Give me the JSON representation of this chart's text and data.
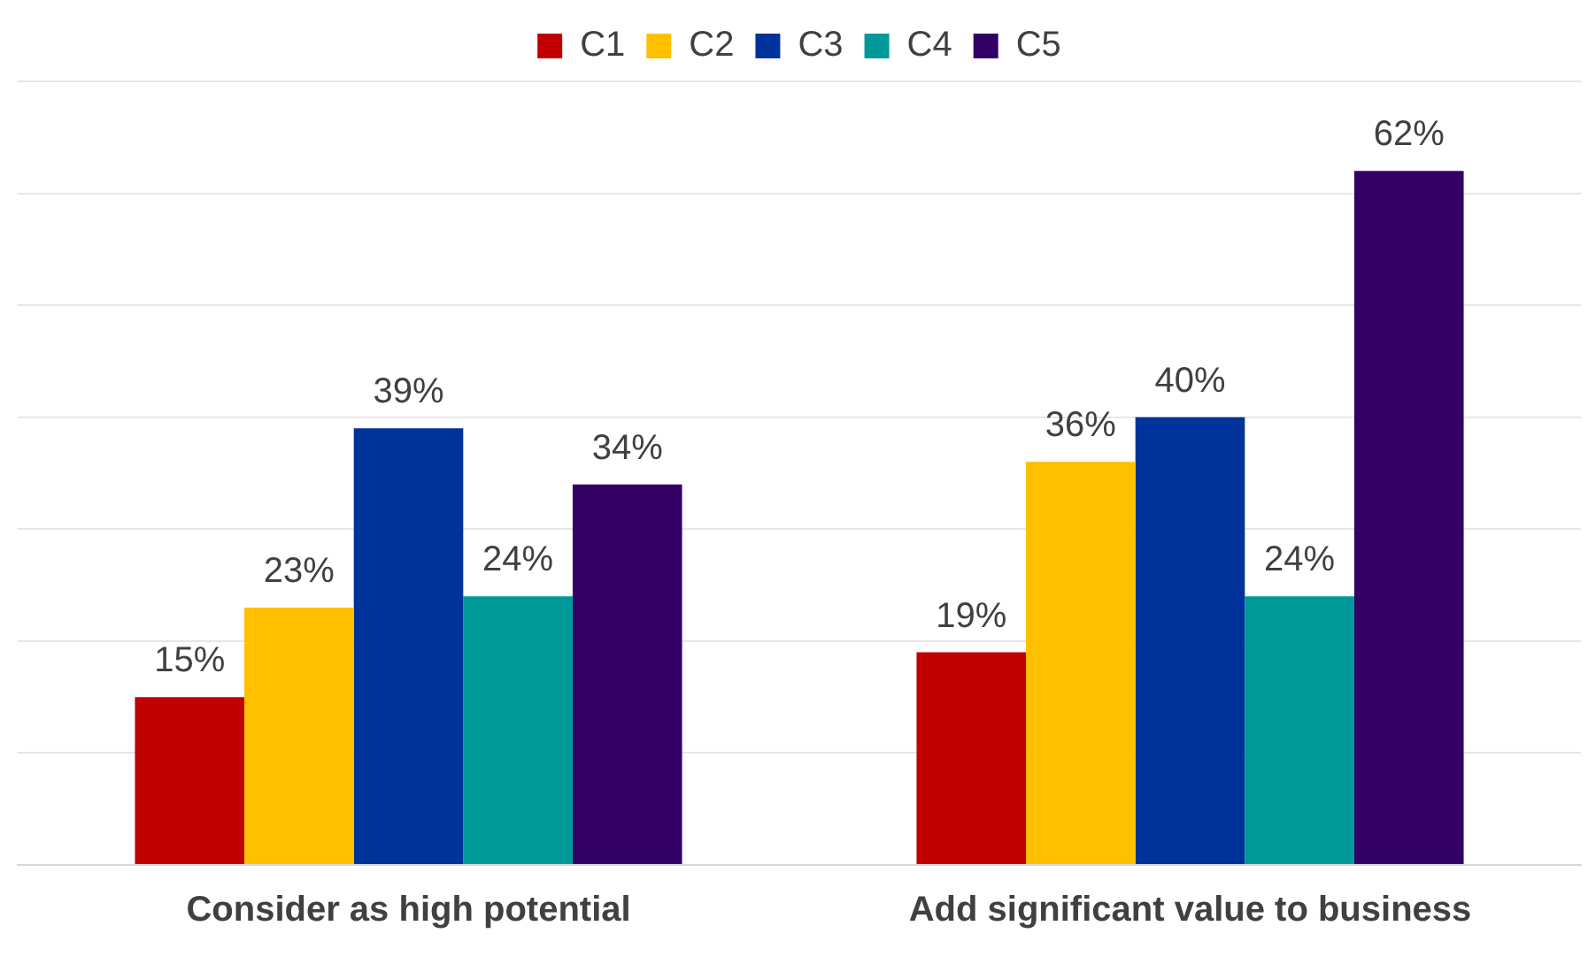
{
  "chart_data": {
    "type": "bar",
    "categories": [
      "Consider as high potential",
      "Add significant value to business"
    ],
    "series": [
      {
        "name": "C1",
        "color": "#c00000",
        "values": [
          15,
          19
        ],
        "value_labels": [
          "15%",
          "19%"
        ]
      },
      {
        "name": "C2",
        "color": "#ffc000",
        "values": [
          23,
          36
        ],
        "value_labels": [
          "23%",
          "36%"
        ]
      },
      {
        "name": "C3",
        "color": "#003399",
        "values": [
          39,
          40
        ],
        "value_labels": [
          "39%",
          "40%"
        ]
      },
      {
        "name": "C4",
        "color": "#009999",
        "values": [
          24,
          24
        ],
        "value_labels": [
          "24%",
          "24%"
        ]
      },
      {
        "name": "C5",
        "color": "#330066",
        "values": [
          34,
          62
        ],
        "value_labels": [
          "34%",
          "62%"
        ]
      }
    ],
    "tick_labels": "x",
    "grid": "y",
    "legend": "top"
  }
}
